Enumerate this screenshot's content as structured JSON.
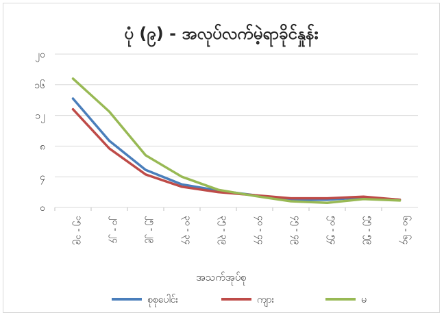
{
  "chart_data": {
    "type": "line",
    "title": "ပုံ (၉) - အလုပ်လက်မဲ့ရာခိုင်နှုန်း",
    "xlabel": "အသက်အုပ်စု",
    "ylabel": "",
    "ylim": [
      0,
      20
    ],
    "yticks": [
      {
        "value": 0,
        "label": "၀"
      },
      {
        "value": 4,
        "label": "၄"
      },
      {
        "value": 8,
        "label": "၈"
      },
      {
        "value": 12,
        "label": "၁၂"
      },
      {
        "value": 16,
        "label": "၁၆"
      },
      {
        "value": 20,
        "label": "၂၀"
      }
    ],
    "categories": [
      "၁၅ - ၁၉",
      "၂၀ - ၂၄",
      "၂၅ - ၂၉",
      "၃၀ - ၃၄",
      "၃၅ - ၃၉",
      "၄၀ - ၄၄",
      "၄၅ - ၄၉",
      "၅၀ - ၅၄",
      "၅၅ - ၅၉",
      "၆၀ - ၆၄"
    ],
    "grid": true,
    "legend_position": "bottom",
    "series": [
      {
        "name": "စုစုပေါင်း",
        "color": "#4a7ebb",
        "values": [
          14.2,
          8.7,
          4.9,
          3.0,
          2.2,
          1.6,
          1.0,
          1.0,
          1.3,
          1.0
        ]
      },
      {
        "name": "ကျား",
        "color": "#be4b48",
        "values": [
          12.8,
          7.7,
          4.3,
          2.7,
          2.0,
          1.6,
          1.2,
          1.2,
          1.4,
          1.0
        ]
      },
      {
        "name": "မ",
        "color": "#98b954",
        "values": [
          16.8,
          12.5,
          6.8,
          4.0,
          2.3,
          1.5,
          0.8,
          0.6,
          1.1,
          0.9
        ]
      }
    ]
  }
}
